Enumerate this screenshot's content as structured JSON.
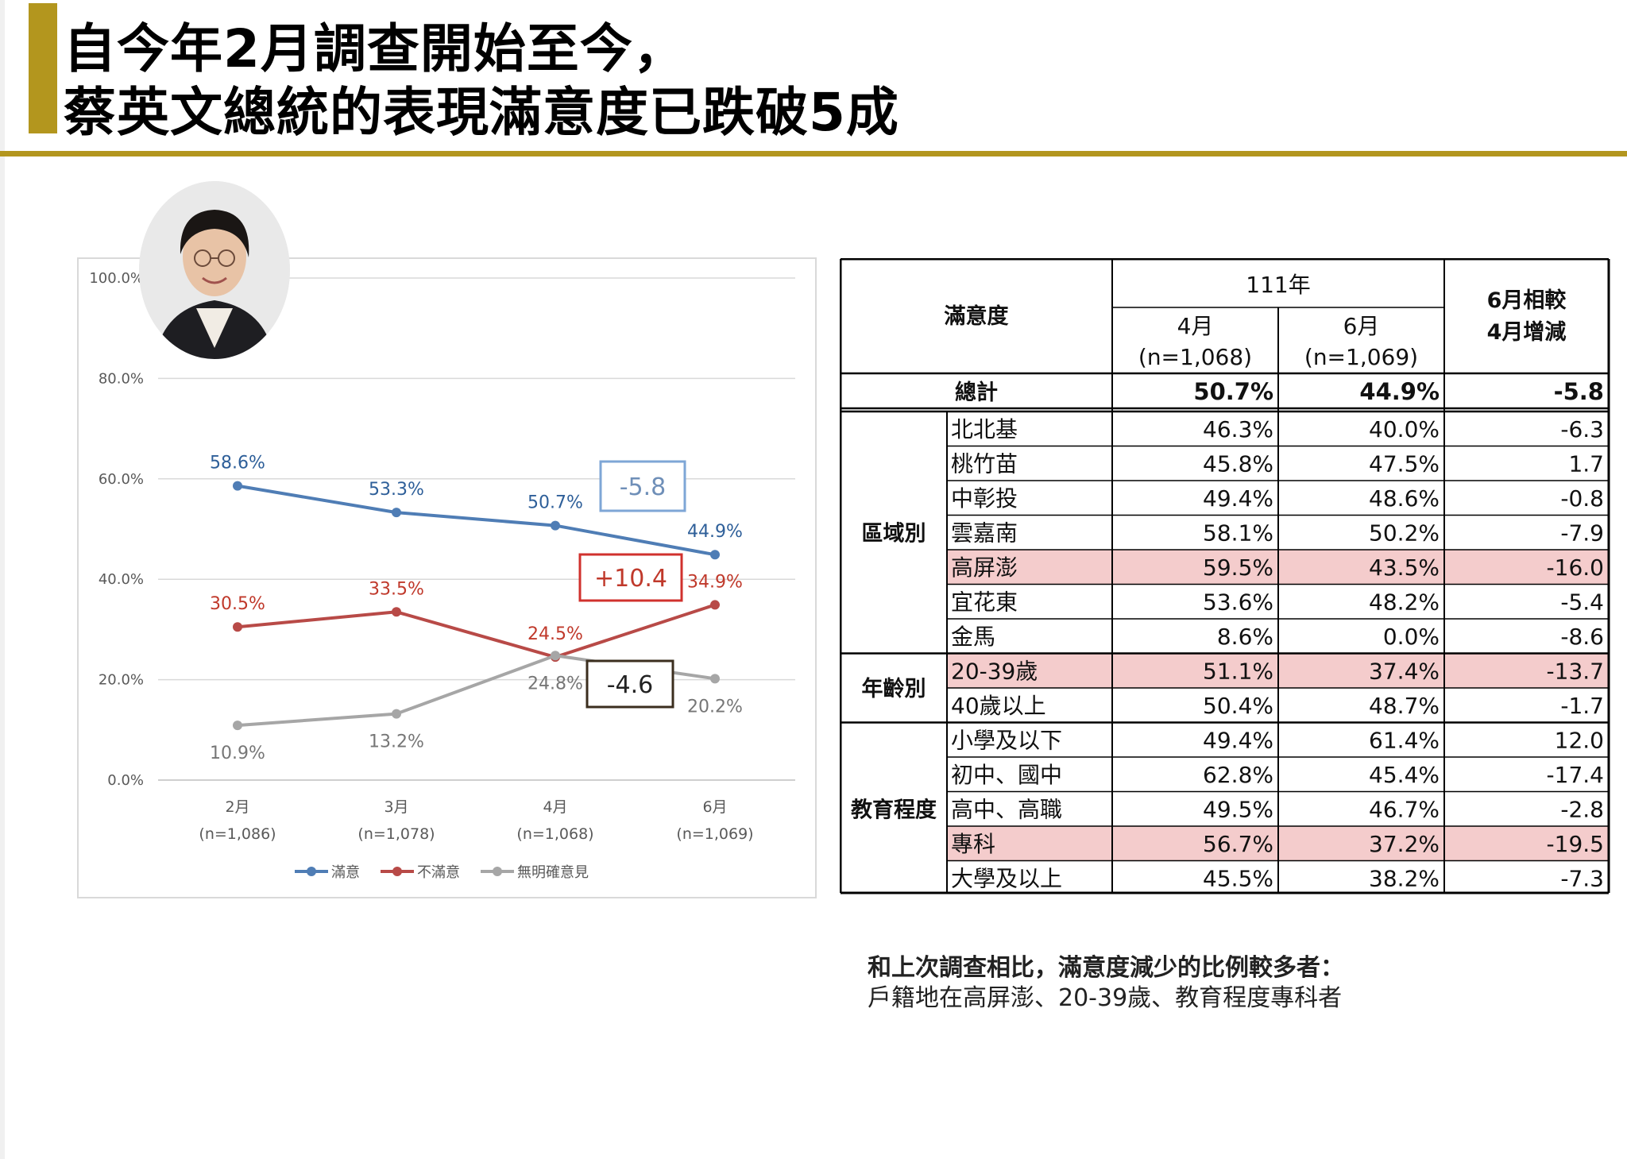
{
  "slide": {
    "title_line1": "自今年2月調查開始至今，",
    "title_line2": "蔡英文總統的表現滿意度已跌破5成",
    "colors": {
      "accent": "#b3961e",
      "highlight_row": "#f4cccc"
    }
  },
  "chart_data": {
    "type": "line",
    "categories": [
      "2月",
      "3月",
      "4月",
      "6月"
    ],
    "category_sublabels": [
      "(n=1,086)",
      "(n=1,078)",
      "(n=1,068)",
      "(n=1,069)"
    ],
    "ylim": [
      0,
      100
    ],
    "yticks": [
      "0.0%",
      "20.0%",
      "40.0%",
      "60.0%",
      "80.0%",
      "100.0%"
    ],
    "ytick_values": [
      0,
      20,
      40,
      60,
      80,
      100
    ],
    "grid": true,
    "legend_position": "bottom",
    "series": [
      {
        "name": "滿意",
        "color": "#4f7db5",
        "label_color": "#2e5f99",
        "values": [
          58.6,
          53.3,
          50.7,
          44.9
        ],
        "labels": [
          "58.6%",
          "53.3%",
          "50.7%",
          "44.9%"
        ]
      },
      {
        "name": "不滿意",
        "color": "#b84a47",
        "label_color": "#c0392b",
        "values": [
          30.5,
          33.5,
          24.5,
          34.9
        ],
        "labels": [
          "30.5%",
          "33.5%",
          "24.5%",
          "34.9%"
        ]
      },
      {
        "name": "無明確意見",
        "color": "#a6a6a6",
        "label_color": "#767676",
        "values": [
          10.9,
          13.2,
          24.8,
          20.2
        ],
        "labels": [
          "10.9%",
          "13.2%",
          "24.8%",
          "20.2%"
        ]
      }
    ],
    "annotations": [
      {
        "text": "-5.8",
        "color": "#7ea6d6",
        "text_color": "#6f8fb8"
      },
      {
        "text": "+10.4",
        "color": "#d0312d",
        "text_color": "#c0392b"
      },
      {
        "text": "-4.6",
        "color": "#3b2e1e",
        "text_color": "#222222"
      }
    ]
  },
  "table": {
    "header": {
      "metric": "滿意度",
      "year": "111年",
      "col_apr": "4月",
      "col_apr_n": "(n=1,068)",
      "col_jun": "6月",
      "col_jun_n": "(n=1,069)",
      "change_l1": "6月相較",
      "change_l2": "4月增減"
    },
    "total": {
      "label": "總計",
      "apr": "50.7%",
      "jun": "44.9%",
      "diff": "-5.8"
    },
    "groups": [
      {
        "name": "區域別",
        "rows": [
          {
            "label": "北北基",
            "apr": "46.3%",
            "jun": "40.0%",
            "diff": "-6.3",
            "hl": false
          },
          {
            "label": "桃竹苗",
            "apr": "45.8%",
            "jun": "47.5%",
            "diff": "1.7",
            "hl": false
          },
          {
            "label": "中彰投",
            "apr": "49.4%",
            "jun": "48.6%",
            "diff": "-0.8",
            "hl": false
          },
          {
            "label": "雲嘉南",
            "apr": "58.1%",
            "jun": "50.2%",
            "diff": "-7.9",
            "hl": false
          },
          {
            "label": "高屏澎",
            "apr": "59.5%",
            "jun": "43.5%",
            "diff": "-16.0",
            "hl": true
          },
          {
            "label": "宜花東",
            "apr": "53.6%",
            "jun": "48.2%",
            "diff": "-5.4",
            "hl": false
          },
          {
            "label": "金馬",
            "apr": "8.6%",
            "jun": "0.0%",
            "diff": "-8.6",
            "hl": false
          }
        ]
      },
      {
        "name": "年齡別",
        "rows": [
          {
            "label": "20-39歲",
            "apr": "51.1%",
            "jun": "37.4%",
            "diff": "-13.7",
            "hl": true
          },
          {
            "label": "40歲以上",
            "apr": "50.4%",
            "jun": "48.7%",
            "diff": "-1.7",
            "hl": false
          }
        ]
      },
      {
        "name": "教育程度",
        "rows": [
          {
            "label": "小學及以下",
            "apr": "49.4%",
            "jun": "61.4%",
            "diff": "12.0",
            "hl": false
          },
          {
            "label": "初中、國中",
            "apr": "62.8%",
            "jun": "45.4%",
            "diff": "-17.4",
            "hl": false
          },
          {
            "label": "高中、高職",
            "apr": "49.5%",
            "jun": "46.7%",
            "diff": "-2.8",
            "hl": false
          },
          {
            "label": "專科",
            "apr": "56.7%",
            "jun": "37.2%",
            "diff": "-19.5",
            "hl": true
          },
          {
            "label": "大學及以上",
            "apr": "45.5%",
            "jun": "38.2%",
            "diff": "-7.3",
            "hl": false
          }
        ]
      }
    ]
  },
  "note": {
    "line1": "和上次調查相比，滿意度減少的比例較多者：",
    "line2": "戶籍地在高屏澎、20-39歲、教育程度專科者"
  }
}
